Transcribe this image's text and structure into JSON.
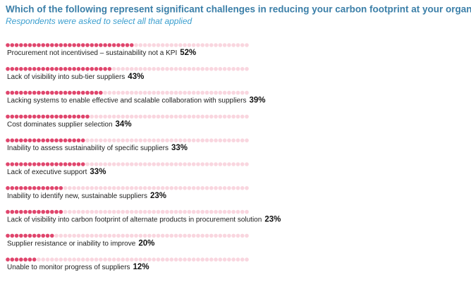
{
  "chart_data": {
    "type": "dotbar",
    "title": "Which of the following represent significant challenges in reducing your carbon footprint at your organisation?",
    "subtitle": "Respondents were asked to select all that applied",
    "categories": [
      "Procurement not incentivised – sustainability not a KPI",
      "Lack of visibility into sub-tier suppliers",
      "Lacking systems to enable effective and scalable collaboration with suppliers",
      "Cost dominates supplier selection",
      "Inability to assess sustainability of specific suppliers",
      "Lack of executive support",
      "Inability to identify new, sustainable suppliers",
      "Lack of visibility into carbon footprint of alternate products in procurement solution",
      "Supplier resistance or inability to improve",
      "Unable to monitor progress of suppliers"
    ],
    "values": [
      52,
      43,
      39,
      34,
      33,
      33,
      23,
      23,
      20,
      12
    ],
    "value_labels": [
      "52%",
      "43%",
      "39%",
      "34%",
      "33%",
      "33%",
      "23%",
      "23%",
      "20%",
      "12%"
    ],
    "color": "#e0466d",
    "empty_color": "#f9d6df",
    "xlim": [
      0,
      100
    ]
  }
}
